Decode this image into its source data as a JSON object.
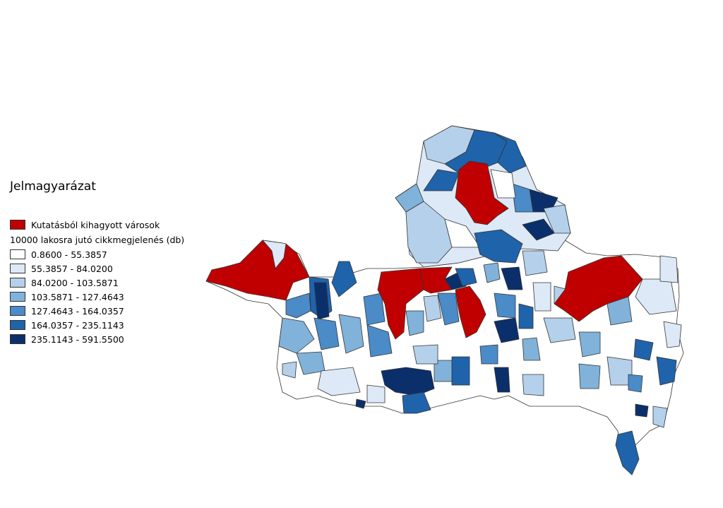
{
  "legend": {
    "title": "Jelmagyarázat",
    "excluded": {
      "label": "Kutatásból kihagyott városok",
      "color": "#c00000"
    },
    "subtitle": "10000 lakosra jutó cikkmegjelenés (db)",
    "classes": [
      {
        "label": "0.8600 - 55.3857",
        "color": "#ffffff"
      },
      {
        "label": "55.3857 - 84.0200",
        "color": "#dde9f7"
      },
      {
        "label": "84.0200 - 103.5871",
        "color": "#b5d0ea"
      },
      {
        "label": "103.5871 - 127.4643",
        "color": "#80b2da"
      },
      {
        "label": "127.4643 - 164.0357",
        "color": "#4a8bc8"
      },
      {
        "label": "164.0357 - 235.1143",
        "color": "#1f63ab"
      },
      {
        "label": "235.1143 - 591.5500",
        "color": "#0b2f6b"
      }
    ]
  }
}
